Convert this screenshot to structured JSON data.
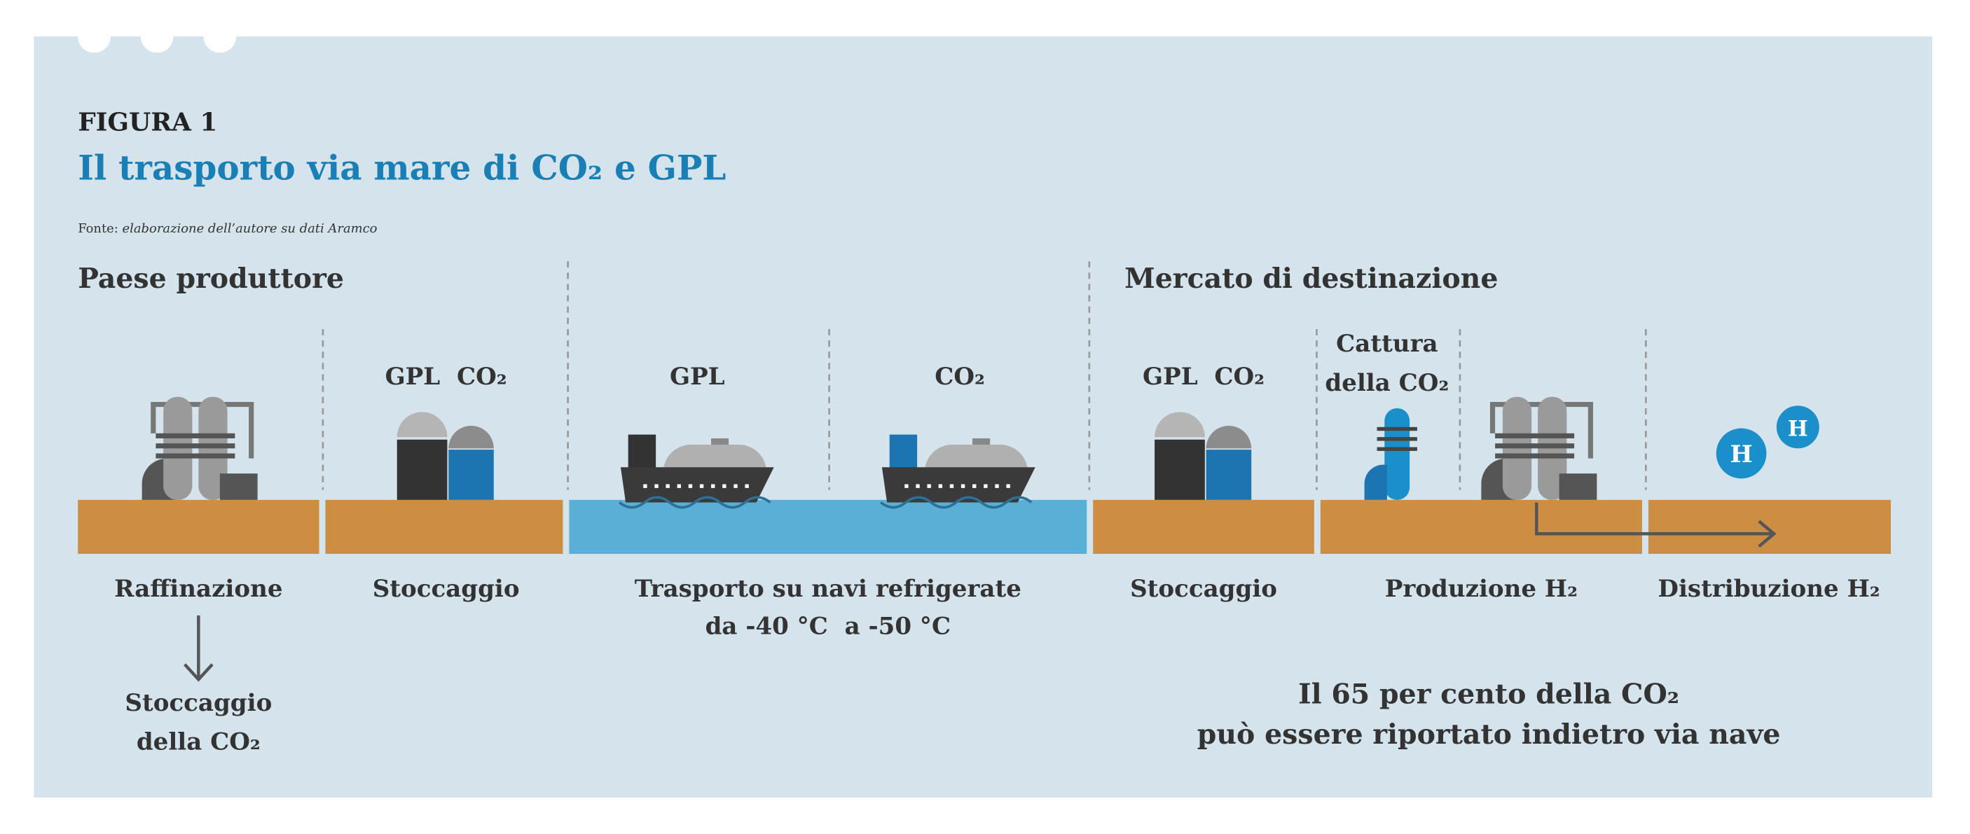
{
  "header": {
    "figure_label": "FIGURA 1",
    "title": "Il trasporto via mare di CO₂ e GPL",
    "source_prefix": "Fonte:",
    "source": "elaborazione dell’autore su dati Aramco"
  },
  "sections": [
    "Paese produttore",
    "Mercato di destinazione"
  ],
  "top_labels": {
    "storage_origin": "GPL  CO₂",
    "ship_gpl": "GPL",
    "ship_co2": "CO₂",
    "storage_destination": "GPL  CO₂",
    "capture": [
      "Cattura",
      "della CO₂"
    ]
  },
  "stages": {
    "refining": "Raffinazione",
    "storage_origin": "Stoccaggio",
    "transport": [
      "Trasporto su navi refrigerate",
      "da -40 °C  a -50 °C"
    ],
    "storage_destination": "Stoccaggio",
    "production": "Produzione H₂",
    "distribution": "Distribuzione H₂"
  },
  "co2_storage": [
    "Stoccaggio",
    "della CO₂"
  ],
  "hydrogen_icons": [
    "H",
    "H"
  ],
  "note": [
    "Il 65 per cento della CO₂",
    "può essere riportato indietro via nave"
  ]
}
